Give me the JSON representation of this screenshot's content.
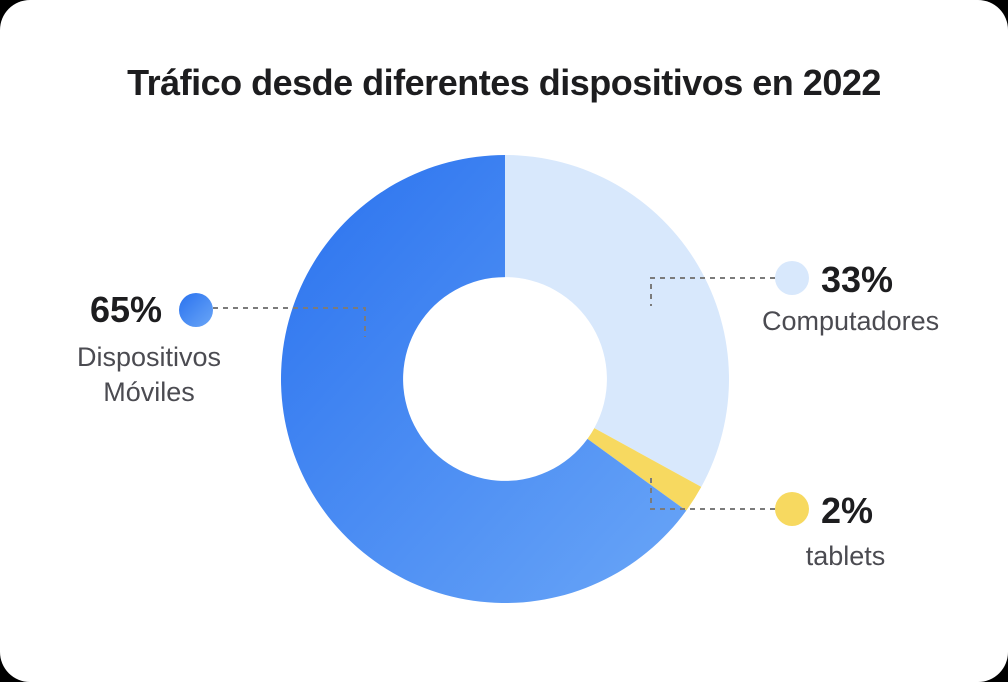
{
  "page": {
    "background_color": "#000000",
    "card_background_color": "#FFFFFF"
  },
  "chart_data": {
    "type": "pie",
    "variant": "donut",
    "title": "Tráfico desde diferentes dispositivos en 2022",
    "start_angle_deg": 0,
    "direction": "clockwise",
    "inner_radius_ratio": 0.455,
    "legend_position": "callouts",
    "connector_color": "#7B7B7B",
    "segments": [
      {
        "label": "Computadores",
        "value": 33,
        "percent_label": "33%",
        "color": "#D8E8FC"
      },
      {
        "label": "tablets",
        "value": 2,
        "percent_label": "2%",
        "color": "#F7D960"
      },
      {
        "label": "Dispositivos Móviles",
        "value": 65,
        "percent_label": "65%",
        "color": "#3B82F4",
        "gradient": [
          "#2A72EF",
          "#6AA6F7"
        ]
      }
    ],
    "text_colors": {
      "title": "#1D1D1F",
      "percent": "#1D1D1F",
      "label": "#4B4B51"
    }
  }
}
